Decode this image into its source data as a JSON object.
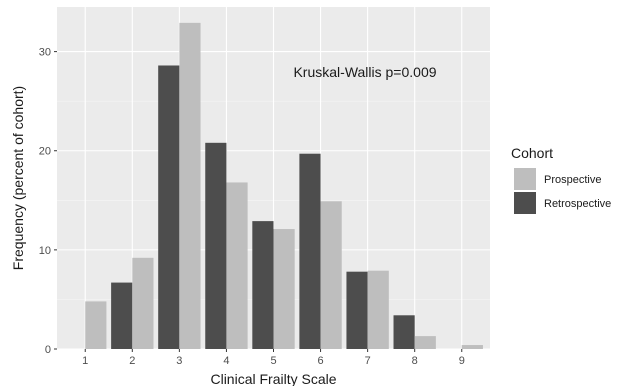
{
  "chart_data": {
    "type": "bar",
    "xlabel": "Clinical Frailty Scale",
    "ylabel": "Frequency (percent of cohort)",
    "annotation": "Kruskal-Wallis p=0.009",
    "x": [
      1,
      2,
      3,
      4,
      5,
      6,
      7,
      8,
      9
    ],
    "y_ticks": [
      0,
      10,
      20,
      30
    ],
    "ylim": [
      0,
      34.5
    ],
    "xlim": [
      0.4,
      9.6
    ],
    "grid": true,
    "legend": {
      "title": "Cohort",
      "position": "right",
      "entries": [
        "Prospective",
        "Retrospective"
      ]
    },
    "series": [
      {
        "name": "Retrospective",
        "color": "#4d4d4d",
        "values": [
          0,
          6.7,
          28.6,
          20.8,
          12.9,
          19.7,
          7.8,
          3.4,
          0
        ]
      },
      {
        "name": "Prospective",
        "color": "#bebebe",
        "values": [
          4.8,
          9.2,
          32.9,
          16.8,
          12.1,
          14.9,
          7.9,
          1.3,
          0.4
        ]
      }
    ]
  }
}
